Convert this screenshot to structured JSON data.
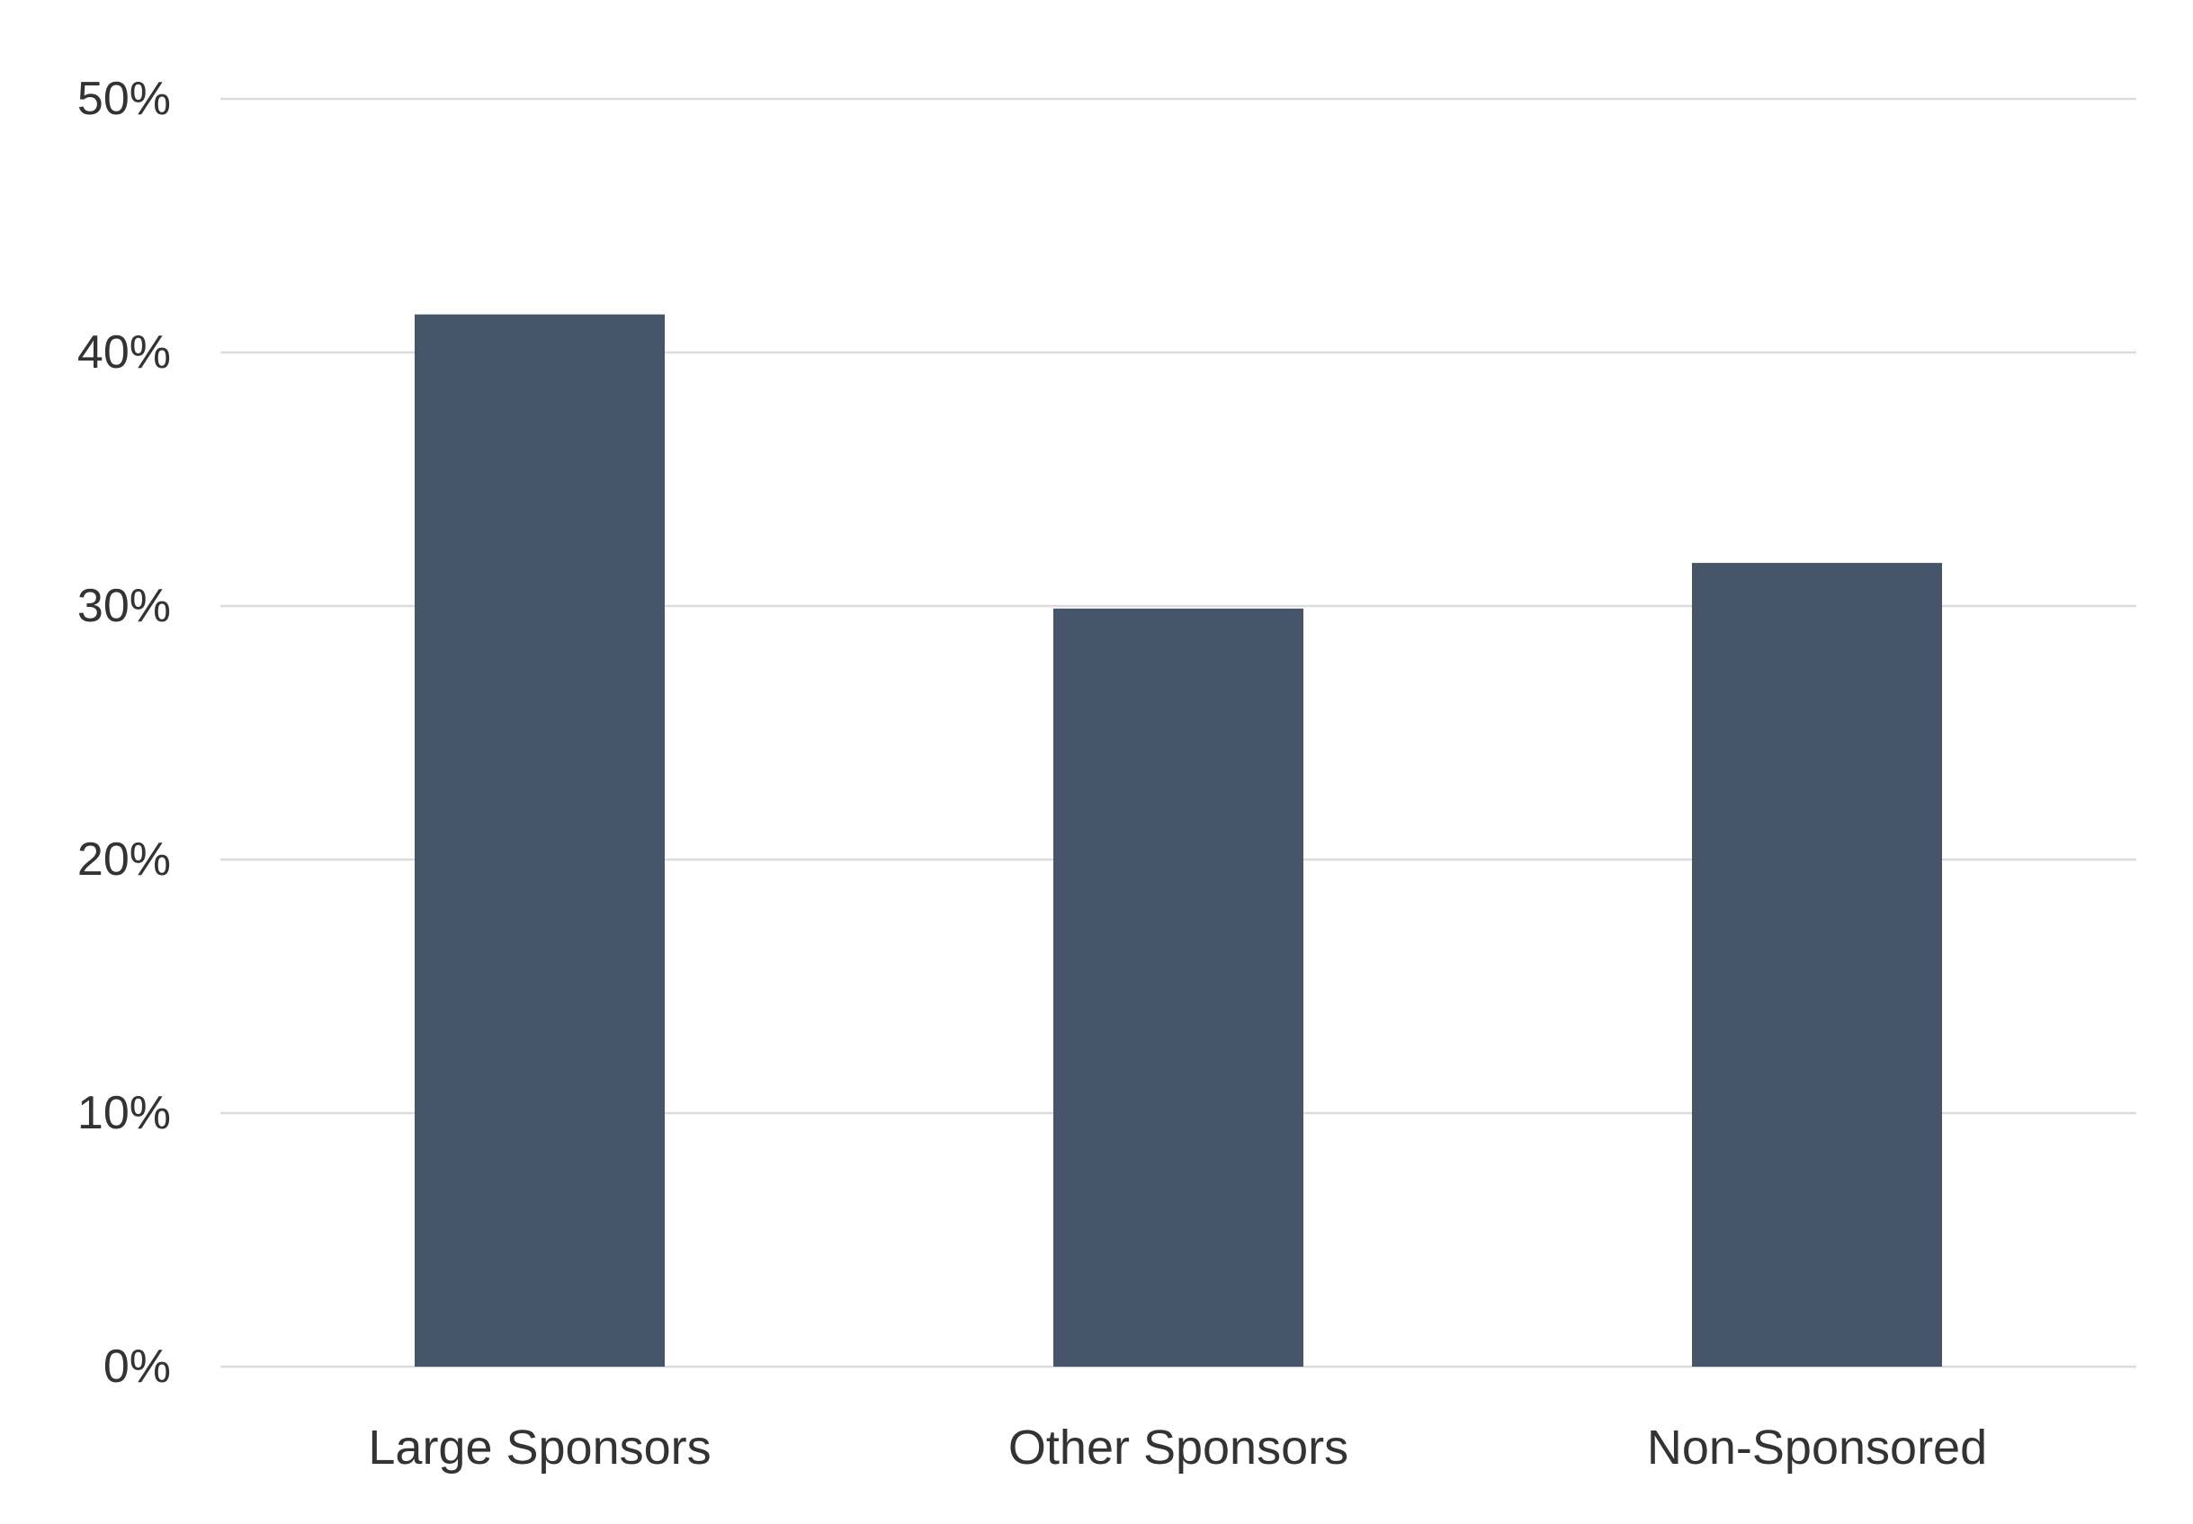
{
  "chart_data": {
    "type": "bar",
    "categories": [
      "Large Sponsors",
      "Other Sponsors",
      "Non-Sponsored"
    ],
    "values": [
      41.5,
      29.9,
      31.7
    ],
    "ylim": [
      0,
      50
    ],
    "yticks": [
      0,
      10,
      20,
      30,
      40,
      50
    ],
    "ytick_labels": [
      "0%",
      "10%",
      "20%",
      "30%",
      "40%",
      "50%"
    ],
    "title": "",
    "xlabel": "",
    "ylabel": "",
    "grid": true,
    "colors": {
      "bar": "#465569",
      "grid": "#dcdcdc",
      "text": "#333333"
    }
  }
}
